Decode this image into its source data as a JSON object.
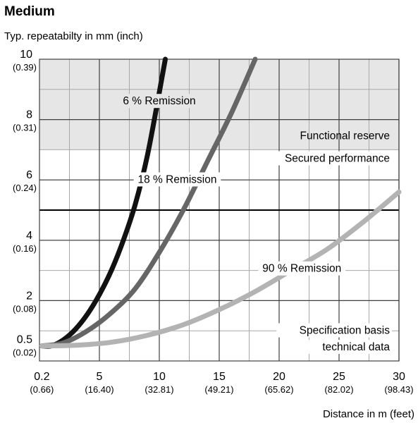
{
  "chart_data": {
    "type": "line",
    "title": "Medium",
    "ylabel": "Typ. repeatabilty in mm (inch)",
    "xlabel": "Distance in m (feet)",
    "xlim": [
      0,
      30
    ],
    "ylim": [
      0,
      10
    ],
    "grid": true,
    "x_ticks": [
      {
        "value": 0.2,
        "label": "0.2",
        "sublabel": "(0.66)"
      },
      {
        "value": 5,
        "label": "5",
        "sublabel": "(16.40)"
      },
      {
        "value": 10,
        "label": "10",
        "sublabel": "(32.81)"
      },
      {
        "value": 15,
        "label": "15",
        "sublabel": "(49.21)"
      },
      {
        "value": 20,
        "label": "20",
        "sublabel": "(65.62)"
      },
      {
        "value": 25,
        "label": "25",
        "sublabel": "(82.02)"
      },
      {
        "value": 30,
        "label": "30",
        "sublabel": "(98.43)"
      }
    ],
    "y_ticks": [
      {
        "value": 0.5,
        "label": "0.5",
        "sublabel": "(0.02)"
      },
      {
        "value": 2,
        "label": "2",
        "sublabel": "(0.08)"
      },
      {
        "value": 4,
        "label": "4",
        "sublabel": "(0.16)"
      },
      {
        "value": 6,
        "label": "6",
        "sublabel": "(0.24)"
      },
      {
        "value": 8,
        "label": "8",
        "sublabel": "(0.31)"
      },
      {
        "value": 10,
        "label": "10",
        "sublabel": "(0.39)"
      }
    ],
    "regions": [
      {
        "label": "Functional reserve",
        "y_from": 7,
        "y_to": 10,
        "color": "#e6e6e6"
      }
    ],
    "reference_line": {
      "y": 5,
      "color": "#000000"
    },
    "annotations": [
      "Secured performance",
      "Specification basis",
      "technical data"
    ],
    "series": [
      {
        "name": "6 % Remission",
        "color": "#111111",
        "x": [
          0.2,
          1,
          2,
          3,
          4,
          5,
          6,
          7,
          8,
          9,
          10,
          10.5
        ],
        "y": [
          0.5,
          0.5,
          0.7,
          1.05,
          1.55,
          2.2,
          3.0,
          4.0,
          5.2,
          6.8,
          8.9,
          10.0
        ]
      },
      {
        "name": "18 % Remission",
        "color": "#666666",
        "x": [
          0.2,
          2,
          4,
          6,
          8,
          10,
          12,
          14,
          16,
          18
        ],
        "y": [
          0.5,
          0.6,
          1.0,
          1.6,
          2.4,
          3.6,
          5.0,
          6.6,
          8.2,
          10.0
        ]
      },
      {
        "name": "90 % Remission",
        "color": "#b3b3b3",
        "x": [
          0.2,
          3,
          6,
          9,
          12,
          15,
          18,
          21,
          24,
          27,
          30
        ],
        "y": [
          0.5,
          0.52,
          0.62,
          0.85,
          1.2,
          1.7,
          2.3,
          3.0,
          3.7,
          4.6,
          5.6
        ]
      }
    ]
  }
}
